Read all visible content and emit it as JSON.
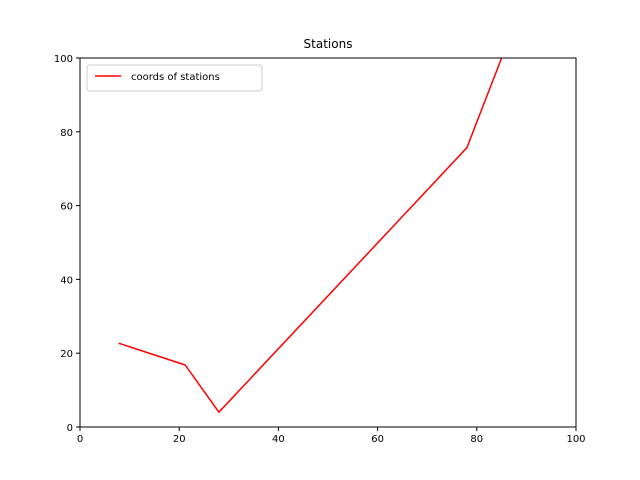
{
  "chart_data": {
    "type": "line",
    "title": "Stations",
    "xlabel": "",
    "ylabel": "",
    "xlim": [
      0,
      100
    ],
    "ylim": [
      0,
      100
    ],
    "xticks": [
      "0",
      "20",
      "40",
      "60",
      "80",
      "100"
    ],
    "yticks": [
      "0",
      "20",
      "40",
      "60",
      "80",
      "100"
    ],
    "grid": false,
    "legend_position": "upper-left",
    "series": [
      {
        "name": "coords of stations",
        "color": "#ff0000",
        "x": [
          7.8,
          21.2,
          28.0,
          78.0,
          85.0
        ],
        "y": [
          22.7,
          16.8,
          4.0,
          75.7,
          100.0
        ]
      }
    ]
  }
}
